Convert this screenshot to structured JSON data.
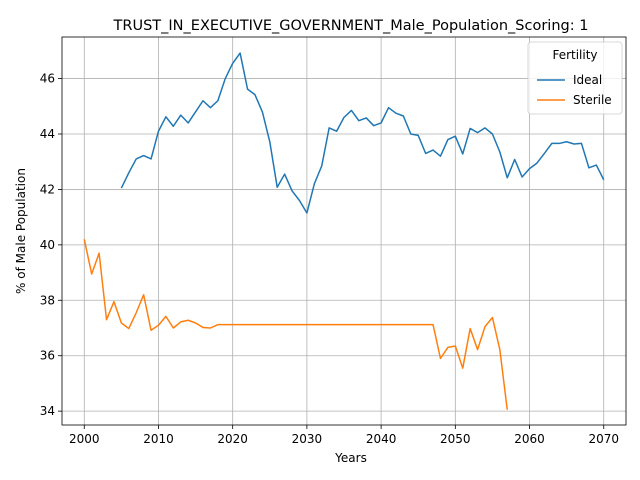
{
  "chart_data": {
    "type": "line",
    "title": "TRUST_IN_EXECUTIVE_GOVERNMENT_Male_Population_Scoring: 1",
    "xlabel": "Years",
    "ylabel": "% of Male Population",
    "xlim": [
      1997,
      2073
    ],
    "ylim": [
      33.5,
      47.5
    ],
    "xticks": [
      2000,
      2010,
      2020,
      2030,
      2040,
      2050,
      2060,
      2070
    ],
    "yticks": [
      34,
      36,
      38,
      40,
      42,
      44,
      46
    ],
    "grid": true,
    "legend": {
      "title": "Fertility",
      "placement": "top-right"
    },
    "series": [
      {
        "name": "Ideal",
        "color": "#1f77b4",
        "x": [
          2005,
          2006,
          2007,
          2008,
          2009,
          2010,
          2011,
          2012,
          2013,
          2014,
          2015,
          2016,
          2017,
          2018,
          2019,
          2020,
          2021,
          2022,
          2023,
          2024,
          2025,
          2026,
          2027,
          2028,
          2029,
          2030,
          2031,
          2032,
          2033,
          2034,
          2035,
          2036,
          2037,
          2038,
          2039,
          2040,
          2041,
          2042,
          2043,
          2044,
          2045,
          2046,
          2047,
          2048,
          2049,
          2050,
          2051,
          2052,
          2053,
          2054,
          2055,
          2056,
          2057,
          2058,
          2059,
          2060,
          2061,
          2062,
          2063,
          2064,
          2065,
          2066,
          2067,
          2068,
          2069,
          2070
        ],
        "y": [
          42.05,
          42.6,
          43.1,
          43.22,
          43.1,
          44.1,
          44.62,
          44.28,
          44.68,
          44.4,
          44.8,
          45.2,
          44.95,
          45.2,
          46.0,
          46.55,
          46.92,
          45.62,
          45.42,
          44.8,
          43.72,
          42.08,
          42.55,
          41.95,
          41.6,
          41.15,
          42.2,
          42.85,
          44.22,
          44.1,
          44.6,
          44.85,
          44.48,
          44.58,
          44.3,
          44.4,
          44.95,
          44.75,
          44.65,
          44.0,
          43.95,
          43.3,
          43.42,
          43.2,
          43.8,
          43.92,
          43.28,
          44.2,
          44.05,
          44.22,
          44.0,
          43.35,
          42.42,
          43.08,
          42.45,
          42.75,
          42.95,
          43.3,
          43.66,
          43.66,
          43.72,
          43.64,
          43.66,
          42.78,
          42.88,
          42.35
        ]
      },
      {
        "name": "Sterile",
        "color": "#ff7f0e",
        "x": [
          2000,
          2001,
          2002,
          2003,
          2004,
          2005,
          2006,
          2007,
          2008,
          2009,
          2010,
          2011,
          2012,
          2013,
          2014,
          2015,
          2016,
          2017,
          2018,
          2019,
          2020,
          2021,
          2022,
          2023,
          2024,
          2025,
          2026,
          2027,
          2028,
          2029,
          2030,
          2031,
          2032,
          2033,
          2034,
          2035,
          2036,
          2037,
          2038,
          2039,
          2040,
          2041,
          2042,
          2043,
          2044,
          2045,
          2046,
          2047,
          2048,
          2049,
          2050,
          2051,
          2052,
          2053,
          2054,
          2055,
          2056,
          2057
        ],
        "y": [
          40.2,
          38.95,
          39.7,
          37.3,
          37.95,
          37.18,
          36.98,
          37.55,
          38.2,
          36.92,
          37.1,
          37.42,
          37.0,
          37.22,
          37.28,
          37.18,
          37.02,
          37.0,
          37.12,
          37.12,
          37.12,
          37.12,
          37.12,
          37.12,
          37.12,
          37.12,
          37.12,
          37.12,
          37.12,
          37.12,
          37.12,
          37.12,
          37.12,
          37.12,
          37.12,
          37.12,
          37.12,
          37.12,
          37.12,
          37.12,
          37.12,
          37.12,
          37.12,
          37.12,
          37.12,
          37.12,
          37.12,
          37.12,
          35.9,
          36.3,
          36.35,
          35.55,
          36.98,
          36.22,
          37.05,
          37.38,
          36.22,
          34.05
        ]
      }
    ]
  }
}
